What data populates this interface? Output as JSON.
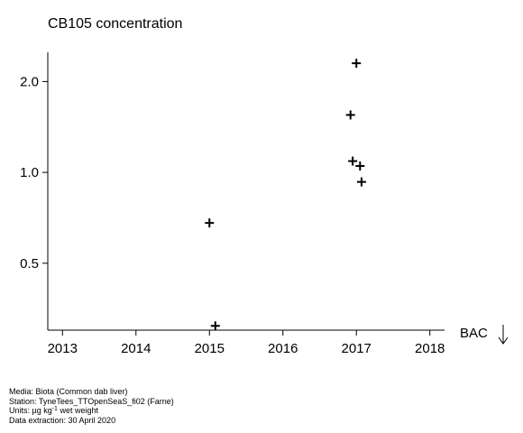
{
  "chart_data": {
    "type": "scatter",
    "title": "CB105 concentration",
    "xlabel": "",
    "ylabel": "",
    "y_scale": "log",
    "xlim": [
      2012.8,
      2018.2
    ],
    "ylim": [
      0.3,
      2.5
    ],
    "x_ticks": [
      2013,
      2014,
      2015,
      2016,
      2017,
      2018
    ],
    "x_tick_labels": [
      "2013",
      "2014",
      "2015",
      "2016",
      "2017",
      "2018"
    ],
    "y_ticks": [
      0.5,
      1.0,
      2.0
    ],
    "y_tick_labels": [
      "0.5",
      "1.0",
      "2.0"
    ],
    "marker": "plus",
    "points": [
      {
        "x": 2015.0,
        "y": 0.68
      },
      {
        "x": 2015.08,
        "y": 0.31
      },
      {
        "x": 2016.92,
        "y": 1.55
      },
      {
        "x": 2016.95,
        "y": 1.09
      },
      {
        "x": 2017.0,
        "y": 2.3
      },
      {
        "x": 2017.05,
        "y": 1.05
      },
      {
        "x": 2017.07,
        "y": 0.93
      }
    ],
    "annotation": {
      "label": "BAC",
      "arrow": "down"
    }
  },
  "footer": {
    "media": "Media: Biota (Common dab liver)",
    "station": "Station: TyneTees_TTOpenSeaS_fi02 (Farne)",
    "units_prefix": "Units:  µg kg",
    "units_exp": "-1",
    "units_suffix": " wet weight",
    "extraction": "Data extraction: 30 April 2020"
  }
}
